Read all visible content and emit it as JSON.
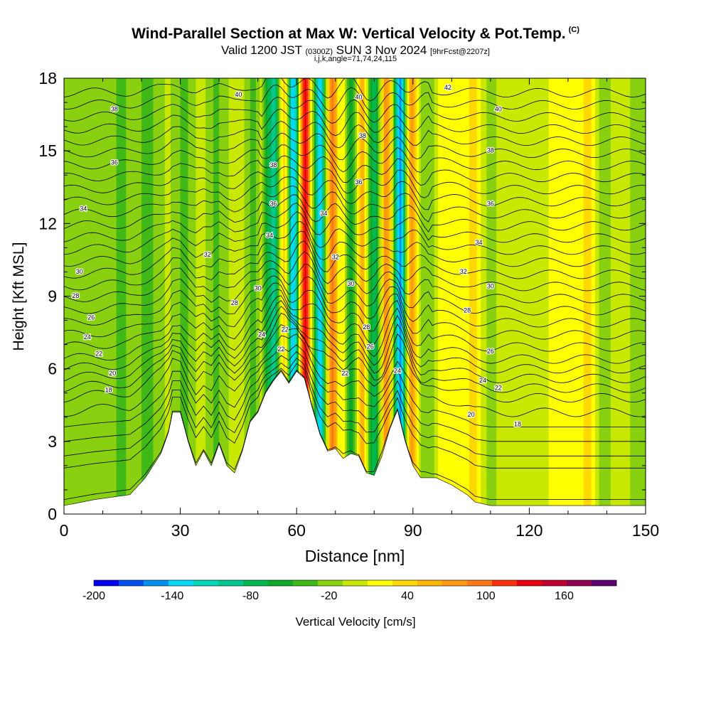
{
  "title": {
    "main": "Wind-Parallel Section at Max W: Vertical Velocity & Pot.Temp.",
    "copyright": "(C)",
    "valid_prefix": "Valid 1200 JST",
    "valid_utc": "(0300Z)",
    "valid_date": "SUN 3 Nov 2024",
    "fcst": "[9hrFcst@2207z]",
    "indices": "i,j,k,angle=71,74,24,115"
  },
  "chart_data": {
    "type": "heatmap",
    "xlabel": "Distance [nm]",
    "ylabel": "Height [Kft MSL]",
    "xlim": [
      0,
      150
    ],
    "ylim": [
      0,
      18
    ],
    "x_ticks": [
      0,
      30,
      60,
      90,
      120,
      150
    ],
    "y_ticks": [
      0,
      3,
      6,
      9,
      12,
      15,
      18
    ],
    "colorbar": {
      "label": "Vertical Velocity [cm/s]",
      "min": -200,
      "max": 200,
      "step": 20,
      "tick_labels": [
        -200,
        -140,
        -80,
        -20,
        40,
        100,
        160
      ],
      "colors": [
        "#0000ee",
        "#0050f0",
        "#0090f0",
        "#00d8f8",
        "#00d8b8",
        "#00c890",
        "#00b850",
        "#10a828",
        "#40b818",
        "#88d010",
        "#c8e800",
        "#ffff00",
        "#ffd800",
        "#ffb400",
        "#ff9a10",
        "#ff7818",
        "#ff3010",
        "#e80010",
        "#c00030",
        "#900050",
        "#600070"
      ]
    },
    "terrain_kft": [
      {
        "x": 0,
        "h": 0.35
      },
      {
        "x": 8,
        "h": 0.6
      },
      {
        "x": 17,
        "h": 0.8
      },
      {
        "x": 21,
        "h": 1.5
      },
      {
        "x": 25,
        "h": 2.5
      },
      {
        "x": 27,
        "h": 3.4
      },
      {
        "x": 28,
        "h": 4.2
      },
      {
        "x": 30,
        "h": 4.2
      },
      {
        "x": 32,
        "h": 3.0
      },
      {
        "x": 34,
        "h": 2.0
      },
      {
        "x": 36,
        "h": 2.6
      },
      {
        "x": 38,
        "h": 2.0
      },
      {
        "x": 40,
        "h": 2.9
      },
      {
        "x": 42,
        "h": 2.0
      },
      {
        "x": 44,
        "h": 1.7
      },
      {
        "x": 46,
        "h": 2.6
      },
      {
        "x": 48,
        "h": 3.8
      },
      {
        "x": 50,
        "h": 4.2
      },
      {
        "x": 52,
        "h": 5.0
      },
      {
        "x": 54,
        "h": 5.5
      },
      {
        "x": 56,
        "h": 5.9
      },
      {
        "x": 58,
        "h": 5.4
      },
      {
        "x": 60,
        "h": 5.9
      },
      {
        "x": 62,
        "h": 5.6
      },
      {
        "x": 64,
        "h": 4.4
      },
      {
        "x": 66,
        "h": 3.3
      },
      {
        "x": 68,
        "h": 2.6
      },
      {
        "x": 70,
        "h": 2.7
      },
      {
        "x": 72,
        "h": 2.3
      },
      {
        "x": 74,
        "h": 2.5
      },
      {
        "x": 76,
        "h": 2.4
      },
      {
        "x": 78,
        "h": 1.7
      },
      {
        "x": 80,
        "h": 1.6
      },
      {
        "x": 82,
        "h": 2.4
      },
      {
        "x": 84,
        "h": 3.5
      },
      {
        "x": 86,
        "h": 4.3
      },
      {
        "x": 88,
        "h": 3.0
      },
      {
        "x": 90,
        "h": 2.0
      },
      {
        "x": 92,
        "h": 1.5
      },
      {
        "x": 96,
        "h": 1.5
      },
      {
        "x": 100,
        "h": 1.2
      },
      {
        "x": 104,
        "h": 0.8
      },
      {
        "x": 106,
        "h": 0.5
      },
      {
        "x": 110,
        "h": 0.35
      },
      {
        "x": 150,
        "h": 0.35
      }
    ],
    "wnodes": [
      {
        "x": 0,
        "w": -15
      },
      {
        "x": 3,
        "w": -12
      },
      {
        "x": 6,
        "w": -20
      },
      {
        "x": 9,
        "w": -14
      },
      {
        "x": 11,
        "w": -10
      },
      {
        "x": 13,
        "w": -18
      },
      {
        "x": 15,
        "w": -25
      },
      {
        "x": 17,
        "w": -15
      },
      {
        "x": 19,
        "w": -10
      },
      {
        "x": 21,
        "w": -35
      },
      {
        "x": 23,
        "w": -20
      },
      {
        "x": 25,
        "w": -5
      },
      {
        "x": 27,
        "w": 5
      },
      {
        "x": 29,
        "w": -10
      },
      {
        "x": 31,
        "w": -30
      },
      {
        "x": 33,
        "w": -10
      },
      {
        "x": 35,
        "w": 10
      },
      {
        "x": 37,
        "w": -5
      },
      {
        "x": 39,
        "w": -25
      },
      {
        "x": 41,
        "w": -15
      },
      {
        "x": 43,
        "w": 5
      },
      {
        "x": 45,
        "w": 20
      },
      {
        "x": 47,
        "w": -10
      },
      {
        "x": 49,
        "w": -30
      },
      {
        "x": 51,
        "w": 5
      },
      {
        "x": 53,
        "w": -70
      },
      {
        "x": 54,
        "w": -110
      },
      {
        "x": 55,
        "w": -60
      },
      {
        "x": 56,
        "w": 20
      },
      {
        "x": 57,
        "w": 60
      },
      {
        "x": 58,
        "w": -40
      },
      {
        "x": 59,
        "w": -150
      },
      {
        "x": 60,
        "w": -90
      },
      {
        "x": 61,
        "w": 70
      },
      {
        "x": 62,
        "w": 160
      },
      {
        "x": 63,
        "w": 110
      },
      {
        "x": 64,
        "w": 10
      },
      {
        "x": 65,
        "w": -80
      },
      {
        "x": 66,
        "w": -150
      },
      {
        "x": 67,
        "w": -60
      },
      {
        "x": 68,
        "w": 20
      },
      {
        "x": 69,
        "w": 110
      },
      {
        "x": 70,
        "w": 80
      },
      {
        "x": 71,
        "w": 20
      },
      {
        "x": 72,
        "w": 40
      },
      {
        "x": 73,
        "w": -20
      },
      {
        "x": 74,
        "w": -60
      },
      {
        "x": 75,
        "w": -20
      },
      {
        "x": 76,
        "w": 40
      },
      {
        "x": 77,
        "w": 80
      },
      {
        "x": 78,
        "w": 20
      },
      {
        "x": 79,
        "w": -40
      },
      {
        "x": 80,
        "w": -90
      },
      {
        "x": 81,
        "w": -30
      },
      {
        "x": 82,
        "w": 30
      },
      {
        "x": 83,
        "w": 100
      },
      {
        "x": 84,
        "w": 60
      },
      {
        "x": 85,
        "w": -20
      },
      {
        "x": 86,
        "w": -120
      },
      {
        "x": 87,
        "w": -160
      },
      {
        "x": 88,
        "w": -40
      },
      {
        "x": 89,
        "w": 60
      },
      {
        "x": 90,
        "w": 90
      },
      {
        "x": 91,
        "w": 40
      },
      {
        "x": 92,
        "w": 0
      },
      {
        "x": 94,
        "w": -20
      },
      {
        "x": 96,
        "w": 10
      },
      {
        "x": 98,
        "w": 40
      },
      {
        "x": 100,
        "w": 20
      },
      {
        "x": 103,
        "w": 30
      },
      {
        "x": 106,
        "w": 50
      },
      {
        "x": 108,
        "w": 10
      },
      {
        "x": 110,
        "w": -10
      },
      {
        "x": 113,
        "w": 10
      },
      {
        "x": 116,
        "w": 20
      },
      {
        "x": 119,
        "w": 0
      },
      {
        "x": 122,
        "w": 10
      },
      {
        "x": 125,
        "w": 20
      },
      {
        "x": 128,
        "w": 20
      },
      {
        "x": 131,
        "w": 30
      },
      {
        "x": 133,
        "w": 20
      },
      {
        "x": 135,
        "w": 60
      },
      {
        "x": 137,
        "w": 20
      },
      {
        "x": 139,
        "w": -20
      },
      {
        "x": 141,
        "w": 0
      },
      {
        "x": 144,
        "w": 10
      },
      {
        "x": 147,
        "w": -5
      },
      {
        "x": 150,
        "w": -5
      }
    ],
    "isentropes_kft_at_x0": [
      0.6,
      1.9,
      2.4,
      3.0,
      3.6,
      4.2,
      4.8,
      5.2,
      5.6,
      6.0,
      6.4,
      6.9,
      7.4,
      7.9,
      8.4,
      8.9,
      9.4,
      9.9,
      10.4,
      10.9,
      11.4,
      11.9,
      12.4,
      12.9,
      13.4,
      13.9,
      14.4,
      14.9,
      15.4,
      15.9,
      16.4,
      16.9,
      17.4
    ],
    "contour_labels": [
      {
        "text": "38",
        "x": 13,
        "y": 16.7
      },
      {
        "text": "36",
        "x": 13,
        "y": 14.5
      },
      {
        "text": "34",
        "x": 5,
        "y": 12.6
      },
      {
        "text": "30",
        "x": 4,
        "y": 10.0
      },
      {
        "text": "28",
        "x": 3,
        "y": 9.0
      },
      {
        "text": "26",
        "x": 7,
        "y": 8.1
      },
      {
        "text": "24",
        "x": 6,
        "y": 7.3
      },
      {
        "text": "22",
        "x": 9,
        "y": 6.6
      },
      {
        "text": "20",
        "x": 12.5,
        "y": 5.8
      },
      {
        "text": "18",
        "x": 11.5,
        "y": 5.1
      },
      {
        "text": "40",
        "x": 45,
        "y": 17.3
      },
      {
        "text": "32",
        "x": 37,
        "y": 10.7
      },
      {
        "text": "30",
        "x": 50,
        "y": 9.3
      },
      {
        "text": "28",
        "x": 44,
        "y": 8.7
      },
      {
        "text": "24",
        "x": 51,
        "y": 7.4
      },
      {
        "text": "38",
        "x": 54,
        "y": 14.4
      },
      {
        "text": "36",
        "x": 54,
        "y": 12.8
      },
      {
        "text": "34",
        "x": 53,
        "y": 11.5
      },
      {
        "text": "22",
        "x": 57,
        "y": 7.6
      },
      {
        "text": "22",
        "x": 56,
        "y": 6.8
      },
      {
        "text": "34",
        "x": 67,
        "y": 12.4
      },
      {
        "text": "32",
        "x": 70,
        "y": 10.6
      },
      {
        "text": "30",
        "x": 74,
        "y": 9.5
      },
      {
        "text": "28",
        "x": 78,
        "y": 7.7
      },
      {
        "text": "26",
        "x": 79,
        "y": 6.9
      },
      {
        "text": "22",
        "x": 72.5,
        "y": 5.8
      },
      {
        "text": "40",
        "x": 76,
        "y": 17.2
      },
      {
        "text": "38",
        "x": 77,
        "y": 15.6
      },
      {
        "text": "36",
        "x": 76,
        "y": 13.7
      },
      {
        "text": "24",
        "x": 86,
        "y": 5.9
      },
      {
        "text": "42",
        "x": 99,
        "y": 17.6
      },
      {
        "text": "40",
        "x": 112,
        "y": 16.7
      },
      {
        "text": "38",
        "x": 110,
        "y": 15.0
      },
      {
        "text": "36",
        "x": 110,
        "y": 12.8
      },
      {
        "text": "34",
        "x": 107,
        "y": 11.2
      },
      {
        "text": "32",
        "x": 103,
        "y": 10.0
      },
      {
        "text": "30",
        "x": 110,
        "y": 9.4
      },
      {
        "text": "28",
        "x": 104,
        "y": 8.4
      },
      {
        "text": "26",
        "x": 110,
        "y": 6.7
      },
      {
        "text": "24",
        "x": 108,
        "y": 5.5
      },
      {
        "text": "22",
        "x": 112,
        "y": 5.2
      },
      {
        "text": "20",
        "x": 105,
        "y": 4.1
      },
      {
        "text": "18",
        "x": 117,
        "y": 3.7
      }
    ]
  }
}
